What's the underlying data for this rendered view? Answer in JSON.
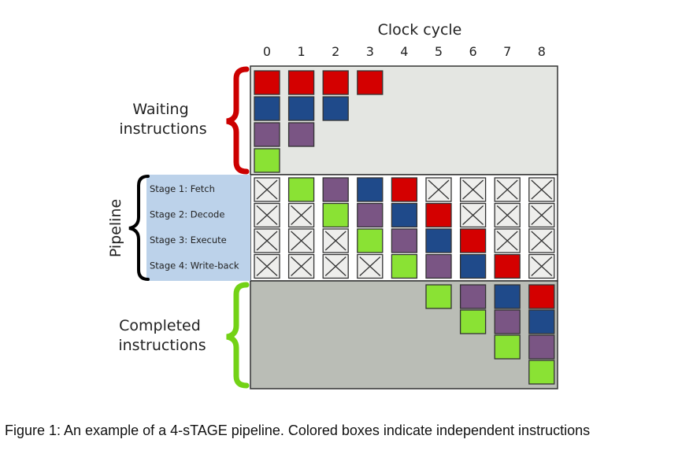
{
  "title": "Clock cycle",
  "cycles": [
    "0",
    "1",
    "2",
    "3",
    "4",
    "5",
    "6",
    "7",
    "8"
  ],
  "sections": {
    "waiting": [
      "Waiting",
      "instructions"
    ],
    "pipeline": "Pipeline",
    "completed": [
      "Completed",
      "instructions"
    ]
  },
  "stages": [
    "Stage 1: Fetch",
    "Stage 2: Decode",
    "Stage 3: Execute",
    "Stage 4: Write-back"
  ],
  "colors": {
    "red": "#d40000",
    "blue": "#1f4a8a",
    "purple": "#7a5584",
    "green": "#8ae234",
    "waiting_bg": "#e4e6e2",
    "pipeline_bg": "#ffffff",
    "completed_bg": "#babdb6",
    "stage_label_bg": "#bcd2ea",
    "brace_waiting": "#cc0000",
    "brace_pipeline": "#000000",
    "brace_completed": "#73d216"
  },
  "instructions": [
    "red",
    "blue",
    "purple",
    "green"
  ],
  "waiting_columns": [
    [
      "red",
      "blue",
      "purple",
      "green"
    ],
    [
      "red",
      "blue",
      "purple"
    ],
    [
      "red",
      "blue"
    ],
    [
      "red"
    ]
  ],
  "pipeline_grid": [
    [
      null,
      "green",
      "purple",
      "blue",
      "red",
      null,
      null,
      null,
      null
    ],
    [
      null,
      null,
      "green",
      "purple",
      "blue",
      "red",
      null,
      null,
      null
    ],
    [
      null,
      null,
      null,
      "green",
      "purple",
      "blue",
      "red",
      null,
      null
    ],
    [
      null,
      null,
      null,
      null,
      "green",
      "purple",
      "blue",
      "red",
      null
    ]
  ],
  "completed_columns": [
    [],
    [],
    [],
    [],
    [],
    [
      "green"
    ],
    [
      "purple",
      "green"
    ],
    [
      "blue",
      "purple",
      "green"
    ],
    [
      "red",
      "blue",
      "purple",
      "green"
    ]
  ],
  "caption": "Figure 1: An example of a 4-sTAGE pipeline. Colored boxes indicate independent instructions"
}
